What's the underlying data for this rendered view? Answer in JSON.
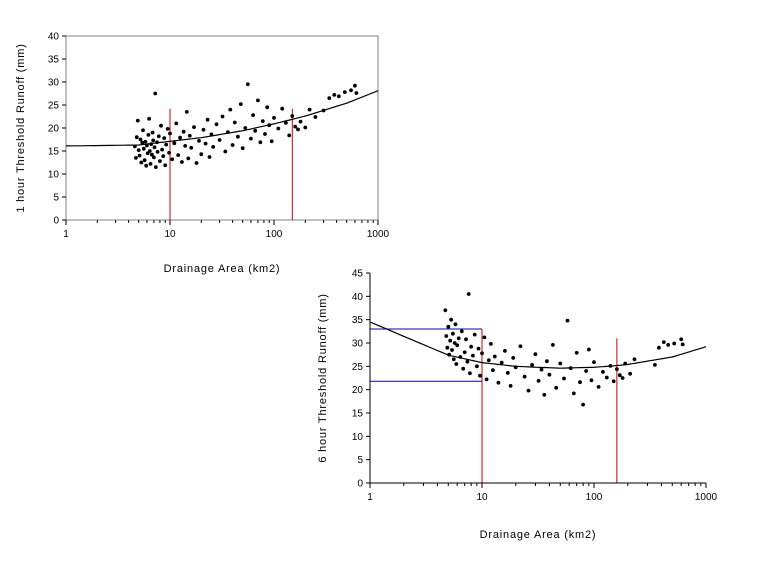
{
  "chart_data": [
    {
      "type": "scatter",
      "title": "",
      "xlabel": "Drainage Area (km2)",
      "ylabel": "1 hour Threshold Runoff (mm)",
      "x_scale": "log",
      "xlim": [
        1,
        1000
      ],
      "ylim": [
        0,
        40
      ],
      "x_ticks": [
        "1",
        "10",
        "100",
        "1000"
      ],
      "y_ticks": [
        "0",
        "5",
        "10",
        "15",
        "20",
        "25",
        "30",
        "35",
        "40"
      ],
      "grid": false,
      "legend": "none",
      "points": [
        [
          4.6,
          16.0
        ],
        [
          4.7,
          13.5
        ],
        [
          4.8,
          18.0
        ],
        [
          4.9,
          21.6
        ],
        [
          5.0,
          15.2
        ],
        [
          5.1,
          14.0
        ],
        [
          5.2,
          17.5
        ],
        [
          5.3,
          12.5
        ],
        [
          5.4,
          16.8
        ],
        [
          5.5,
          19.5
        ],
        [
          5.6,
          15.5
        ],
        [
          5.7,
          13.0
        ],
        [
          5.8,
          17.0
        ],
        [
          5.9,
          11.8
        ],
        [
          6.0,
          16.2
        ],
        [
          6.1,
          14.5
        ],
        [
          6.2,
          18.5
        ],
        [
          6.3,
          22.0
        ],
        [
          6.4,
          15.0
        ],
        [
          6.5,
          12.2
        ],
        [
          6.6,
          16.5
        ],
        [
          6.7,
          14.2
        ],
        [
          6.8,
          19.0
        ],
        [
          6.9,
          17.3
        ],
        [
          7.0,
          13.6
        ],
        [
          7.1,
          15.8
        ],
        [
          7.2,
          27.5
        ],
        [
          7.3,
          11.5
        ],
        [
          7.5,
          16.9
        ],
        [
          7.6,
          14.8
        ],
        [
          7.8,
          18.2
        ],
        [
          8.0,
          12.8
        ],
        [
          8.2,
          20.5
        ],
        [
          8.4,
          15.3
        ],
        [
          8.6,
          13.9
        ],
        [
          8.8,
          17.8
        ],
        [
          9.0,
          11.9
        ],
        [
          9.2,
          16.4
        ],
        [
          9.5,
          19.8
        ],
        [
          9.8,
          14.6
        ],
        [
          10.0,
          18.8
        ],
        [
          10.5,
          13.2
        ],
        [
          11.0,
          16.7
        ],
        [
          11.5,
          21.0
        ],
        [
          12.0,
          14.1
        ],
        [
          12.5,
          17.9
        ],
        [
          13.0,
          12.6
        ],
        [
          13.5,
          19.2
        ],
        [
          14.0,
          16.1
        ],
        [
          14.5,
          23.5
        ],
        [
          15.0,
          13.4
        ],
        [
          15.5,
          18.3
        ],
        [
          16.0,
          15.7
        ],
        [
          17.0,
          20.2
        ],
        [
          18.0,
          12.4
        ],
        [
          19.0,
          17.2
        ],
        [
          20.0,
          14.3
        ],
        [
          21.0,
          19.6
        ],
        [
          22.0,
          16.6
        ],
        [
          23.0,
          21.8
        ],
        [
          24.0,
          13.7
        ],
        [
          25.0,
          18.6
        ],
        [
          26.0,
          15.9
        ],
        [
          28.0,
          20.8
        ],
        [
          30.0,
          17.4
        ],
        [
          32.0,
          22.5
        ],
        [
          34.0,
          14.9
        ],
        [
          36.0,
          19.1
        ],
        [
          38.0,
          24.0
        ],
        [
          40.0,
          16.3
        ],
        [
          42.0,
          21.2
        ],
        [
          45.0,
          18.1
        ],
        [
          48.0,
          25.2
        ],
        [
          50.0,
          15.6
        ],
        [
          53.0,
          20.0
        ],
        [
          56.0,
          29.5
        ],
        [
          60.0,
          17.7
        ],
        [
          63.0,
          22.8
        ],
        [
          66.0,
          19.4
        ],
        [
          70.0,
          26.0
        ],
        [
          74.0,
          16.9
        ],
        [
          78.0,
          21.5
        ],
        [
          82.0,
          18.7
        ],
        [
          86.0,
          24.5
        ],
        [
          90.0,
          20.6
        ],
        [
          95.0,
          17.1
        ],
        [
          100.0,
          22.2
        ],
        [
          110.0,
          19.9
        ],
        [
          120.0,
          24.2
        ],
        [
          130.0,
          21.1
        ],
        [
          140.0,
          18.4
        ],
        [
          150.0,
          22.6
        ],
        [
          160.0,
          20.3
        ],
        [
          170.0,
          19.7
        ],
        [
          180.0,
          21.4
        ],
        [
          200.0,
          20.1
        ],
        [
          220.0,
          24.0
        ],
        [
          250.0,
          22.4
        ],
        [
          300.0,
          23.8
        ],
        [
          340.0,
          26.5
        ],
        [
          380.0,
          27.2
        ],
        [
          420.0,
          26.9
        ],
        [
          480.0,
          27.8
        ],
        [
          550.0,
          28.2
        ],
        [
          600.0,
          29.2
        ],
        [
          620.0,
          27.6
        ]
      ],
      "trend_line": {
        "x": [
          1,
          5,
          10,
          20,
          50,
          100,
          200,
          500,
          1000
        ],
        "y": [
          16.1,
          16.3,
          17.1,
          17.9,
          19.4,
          20.9,
          22.6,
          25.4,
          28.1
        ]
      },
      "reference_lines": {
        "vertical_x": [
          10,
          150
        ],
        "horizontal_y": [],
        "color": "#cc0000"
      },
      "marker_color": "#000000",
      "line_color": "#000000"
    },
    {
      "type": "scatter",
      "title": "",
      "xlabel": "Drainage Area (km2)",
      "ylabel": "6 hour Threshold Runoff (mm)",
      "x_scale": "log",
      "xlim": [
        1,
        1000
      ],
      "ylim": [
        0,
        45
      ],
      "x_ticks": [
        "1",
        "10",
        "100",
        "1000"
      ],
      "y_ticks": [
        "0",
        "5",
        "10",
        "15",
        "20",
        "25",
        "30",
        "35",
        "40",
        "45"
      ],
      "grid": false,
      "legend": "none",
      "points": [
        [
          4.7,
          37.0
        ],
        [
          4.8,
          31.5
        ],
        [
          4.9,
          29.0
        ],
        [
          5.0,
          33.5
        ],
        [
          5.1,
          27.5
        ],
        [
          5.2,
          30.5
        ],
        [
          5.3,
          35.0
        ],
        [
          5.4,
          28.5
        ],
        [
          5.5,
          32.0
        ],
        [
          5.6,
          26.5
        ],
        [
          5.7,
          30.0
        ],
        [
          5.8,
          34.0
        ],
        [
          5.9,
          25.5
        ],
        [
          6.0,
          29.5
        ],
        [
          6.2,
          31.0
        ],
        [
          6.4,
          27.0
        ],
        [
          6.6,
          32.5
        ],
        [
          6.8,
          24.5
        ],
        [
          7.0,
          28.0
        ],
        [
          7.2,
          30.8
        ],
        [
          7.4,
          26.0
        ],
        [
          7.6,
          40.5
        ],
        [
          7.8,
          23.5
        ],
        [
          8.0,
          29.2
        ],
        [
          8.3,
          27.3
        ],
        [
          8.6,
          31.8
        ],
        [
          9.0,
          25.0
        ],
        [
          9.3,
          28.8
        ],
        [
          9.6,
          23.0
        ],
        [
          10.0,
          27.8
        ],
        [
          10.5,
          31.2
        ],
        [
          11.0,
          22.2
        ],
        [
          11.5,
          26.3
        ],
        [
          12.0,
          29.8
        ],
        [
          12.5,
          24.2
        ],
        [
          13.0,
          27.1
        ],
        [
          14.0,
          21.5
        ],
        [
          15.0,
          25.8
        ],
        [
          16.0,
          28.3
        ],
        [
          17.0,
          23.6
        ],
        [
          18.0,
          20.8
        ],
        [
          19.0,
          26.8
        ],
        [
          20.0,
          24.8
        ],
        [
          22.0,
          29.3
        ],
        [
          24.0,
          22.8
        ],
        [
          26.0,
          19.8
        ],
        [
          28.0,
          25.3
        ],
        [
          30.0,
          27.6
        ],
        [
          32.0,
          21.9
        ],
        [
          34.0,
          24.3
        ],
        [
          36.0,
          18.9
        ],
        [
          38.0,
          26.1
        ],
        [
          40.0,
          23.2
        ],
        [
          43.0,
          29.6
        ],
        [
          46.0,
          20.4
        ],
        [
          50.0,
          25.6
        ],
        [
          54.0,
          22.4
        ],
        [
          58.0,
          34.8
        ],
        [
          62.0,
          24.6
        ],
        [
          66.0,
          19.2
        ],
        [
          70.0,
          27.9
        ],
        [
          75.0,
          21.6
        ],
        [
          80.0,
          16.8
        ],
        [
          85.0,
          24.0
        ],
        [
          90.0,
          28.6
        ],
        [
          95.0,
          22.0
        ],
        [
          100.0,
          25.9
        ],
        [
          110.0,
          20.6
        ],
        [
          120.0,
          23.8
        ],
        [
          130.0,
          22.6
        ],
        [
          140.0,
          25.1
        ],
        [
          150.0,
          21.8
        ],
        [
          160.0,
          24.4
        ],
        [
          170.0,
          23.1
        ],
        [
          180.0,
          22.5
        ],
        [
          190.0,
          25.6
        ],
        [
          210.0,
          23.4
        ],
        [
          230.0,
          26.5
        ],
        [
          350.0,
          25.3
        ],
        [
          380.0,
          29.0
        ],
        [
          420.0,
          30.2
        ],
        [
          460.0,
          29.6
        ],
        [
          520.0,
          29.9
        ],
        [
          600.0,
          30.8
        ],
        [
          620.0,
          29.7
        ]
      ],
      "trend_line": {
        "x": [
          1,
          5,
          10,
          20,
          50,
          100,
          150,
          200,
          500,
          1000
        ],
        "y": [
          34.5,
          27.4,
          25.8,
          25.0,
          24.6,
          24.8,
          25.1,
          25.4,
          27.0,
          29.2
        ]
      },
      "reference_lines": {
        "vertical_x": [
          10,
          160
        ],
        "horizontal_y": [
          33,
          21.8
        ],
        "color_vertical": "#cc0000",
        "color_horizontal": "#0000cc"
      },
      "marker_color": "#000000",
      "line_color": "#000000"
    }
  ]
}
